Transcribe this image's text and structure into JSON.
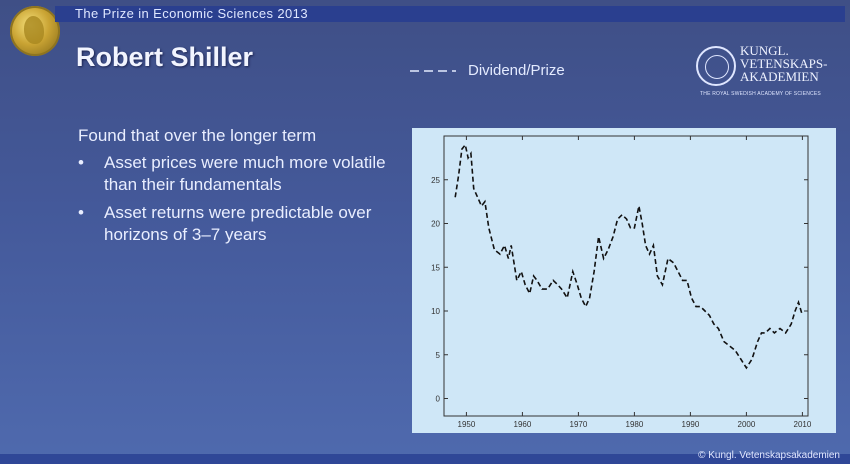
{
  "header": {
    "event_title": "The Prize in Economic Sciences 2013"
  },
  "slide": {
    "title": "Robert Shiller",
    "intro": "Found that over the longer term",
    "bullets": [
      "Asset prices were much more volatile than their fundamentals",
      "Asset returns were predictable over horizons of 3–7 years"
    ]
  },
  "logo": {
    "lines": [
      "KUNGL.",
      "VETENSKAPS-",
      "AKADEMIEN"
    ],
    "sub": "THE ROYAL SWEDISH ACADEMY OF SCIENCES",
    "icon": "academy-seal-icon"
  },
  "medal": {
    "icon": "nobel-medal-icon"
  },
  "legend": {
    "label": "Dividend/Prize",
    "style": "dashed"
  },
  "footer": {
    "copyright": "© Kungl. Vetenskapsakademien"
  },
  "colors": {
    "chart_background": "#cfe7f7",
    "line": "#111111",
    "top_bar": "#2a3f8f"
  },
  "chart_data": {
    "type": "line",
    "x_ticks": [
      1950,
      1960,
      1970,
      1980,
      1990,
      2000,
      2010
    ],
    "y_ticks": [
      0,
      5,
      10,
      15,
      20,
      25
    ],
    "xlim": [
      1946,
      2011
    ],
    "ylim": [
      -2,
      30
    ],
    "series": [
      {
        "name": "Dividend/Prize",
        "style": "dashed",
        "x": [
          1948,
          1948.6,
          1949.2,
          1949.8,
          1950.3,
          1950.8,
          1951.3,
          1952,
          1952.7,
          1953.3,
          1954,
          1955,
          1956,
          1956.8,
          1957.5,
          1958,
          1959,
          1959.8,
          1960.5,
          1961.3,
          1962,
          1962.6,
          1963.5,
          1964.5,
          1965.5,
          1966.3,
          1967,
          1968,
          1969,
          1969.8,
          1970.5,
          1971.3,
          1972,
          1972.8,
          1973.6,
          1974.5,
          1975.3,
          1976.2,
          1977,
          1977.8,
          1978.6,
          1979.3,
          1980,
          1980.8,
          1981.4,
          1982,
          1982.7,
          1983.4,
          1984.1,
          1985,
          1986,
          1987,
          1987.8,
          1988.6,
          1989.4,
          1990.2,
          1991,
          1991.8,
          1992.6,
          1993.4,
          1994.2,
          1995,
          1996,
          1997,
          1998,
          1999,
          2000,
          2001,
          2002,
          2002.7,
          2003.4,
          2004.2,
          2005,
          2006,
          2007,
          2008,
          2008.7,
          2009.3,
          2010
        ],
        "y": [
          23,
          25.5,
          28.5,
          29,
          27.5,
          28,
          24,
          23,
          22,
          22.5,
          19.5,
          17,
          16.5,
          17.5,
          16,
          17.5,
          13.5,
          14.5,
          13,
          12,
          14,
          13.5,
          12.5,
          12.5,
          13.5,
          13,
          12.5,
          11.5,
          14.5,
          13,
          11.5,
          10.5,
          11.5,
          14.5,
          18.5,
          16,
          17,
          18.5,
          20.5,
          21,
          20.5,
          19.5,
          19.5,
          22,
          20,
          17.5,
          16.5,
          17.5,
          14,
          13,
          16,
          15.5,
          14.5,
          13.5,
          13.5,
          11.5,
          10.5,
          10.5,
          10,
          9.5,
          8.5,
          8,
          6.5,
          6,
          5.5,
          4.5,
          3.5,
          4.5,
          6.5,
          7.5,
          7.5,
          8,
          7.5,
          8,
          7.5,
          8.5,
          10,
          11,
          9.5
        ]
      }
    ]
  }
}
